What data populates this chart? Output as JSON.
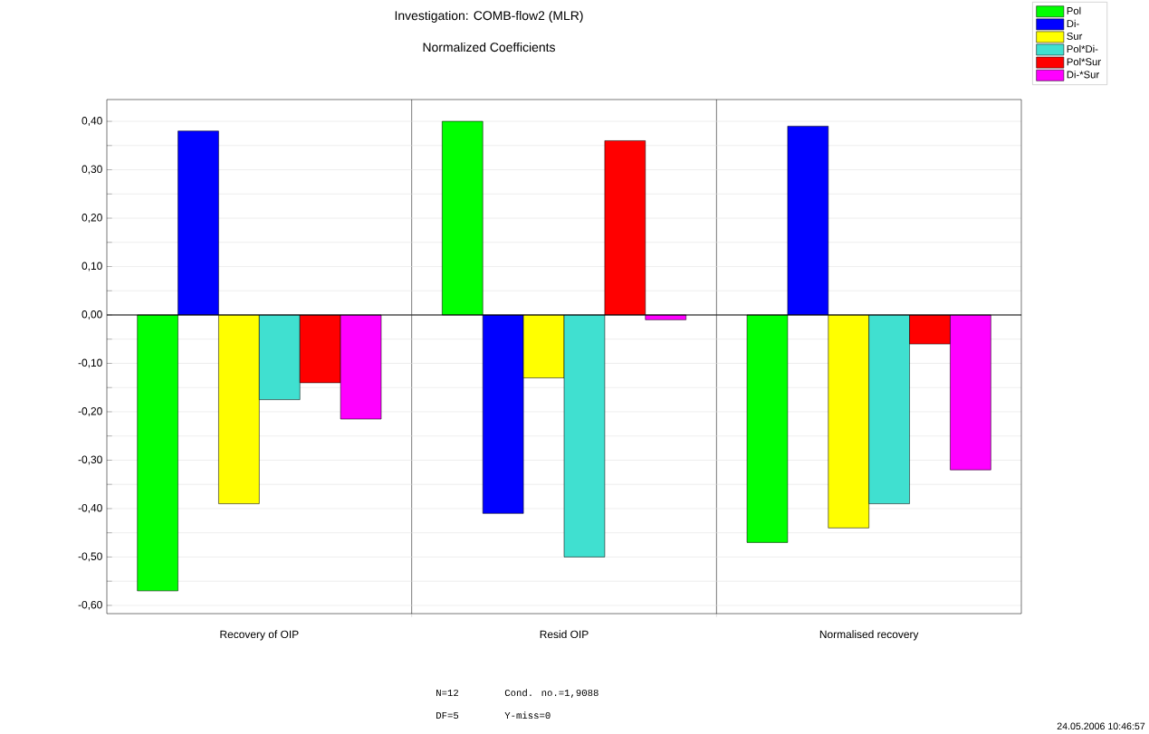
{
  "chart_data": {
    "type": "bar",
    "title": "Investigation: COMB-flow2 (MLR)",
    "subtitle": "Normalized Coefficients",
    "categories": [
      "Recovery of OIP",
      "Resid OIP",
      "Normalised recovery"
    ],
    "series": [
      {
        "name": "Pol",
        "color": "#00ff00",
        "values": [
          -0.57,
          0.4,
          -0.47
        ]
      },
      {
        "name": "Di-",
        "color": "#0000ff",
        "values": [
          0.38,
          -0.41,
          0.39
        ]
      },
      {
        "name": "Sur",
        "color": "#ffff00",
        "values": [
          -0.39,
          -0.13,
          -0.44
        ]
      },
      {
        "name": "Pol*Di-",
        "color": "#40e0d0",
        "values": [
          -0.175,
          -0.5,
          -0.39
        ]
      },
      {
        "name": "Pol*Sur",
        "color": "#ff0000",
        "values": [
          -0.14,
          0.36,
          -0.06
        ]
      },
      {
        "name": "Di-*Sur",
        "color": "#ff00ff",
        "values": [
          -0.215,
          -0.01,
          -0.32
        ]
      }
    ],
    "ylim": [
      -0.617,
      0.445
    ],
    "yticks": [
      {
        "value": -0.6,
        "label": "-0,60"
      },
      {
        "value": -0.55,
        "label": null
      },
      {
        "value": -0.5,
        "label": "-0,50"
      },
      {
        "value": -0.45,
        "label": null
      },
      {
        "value": -0.4,
        "label": "-0,40"
      },
      {
        "value": -0.35,
        "label": null
      },
      {
        "value": -0.3,
        "label": "-0,30"
      },
      {
        "value": -0.25,
        "label": null
      },
      {
        "value": -0.2,
        "label": "-0,20"
      },
      {
        "value": -0.15,
        "label": null
      },
      {
        "value": -0.1,
        "label": "-0,10"
      },
      {
        "value": -0.05,
        "label": null
      },
      {
        "value": 0,
        "label": "0,00"
      },
      {
        "value": 0.05,
        "label": null
      },
      {
        "value": 0.1,
        "label": "0,10"
      },
      {
        "value": 0.15,
        "label": null
      },
      {
        "value": 0.2,
        "label": "0,20"
      },
      {
        "value": 0.25,
        "label": null
      },
      {
        "value": 0.3,
        "label": "0,30"
      },
      {
        "value": 0.35,
        "label": null
      },
      {
        "value": 0.4,
        "label": "0,40"
      }
    ],
    "grid": "y",
    "legend": "top right",
    "ref_lines": [
      {
        "axis": "y",
        "value": 0,
        "color": "#000000"
      }
    ],
    "annotations": [
      "N=12",
      "Cond. no.=1,9088",
      "DF=5",
      "Y-miss=0",
      "24.05.2006 10:46:57"
    ]
  }
}
